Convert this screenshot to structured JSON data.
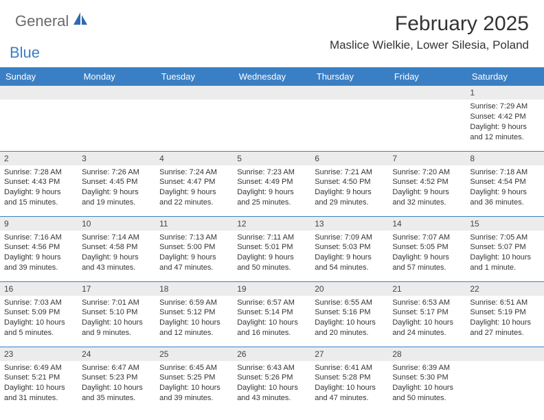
{
  "logo": {
    "textGray": "General",
    "textBlue": "Blue"
  },
  "title": "February 2025",
  "location": "Maslice Wielkie, Lower Silesia, Poland",
  "colors": {
    "headerBlue": "#3a7fc4",
    "dayBarGray": "#ececec",
    "textDark": "#333333",
    "logoGray": "#6a6a6a"
  },
  "dayHeaders": [
    "Sunday",
    "Monday",
    "Tuesday",
    "Wednesday",
    "Thursday",
    "Friday",
    "Saturday"
  ],
  "weeks": [
    [
      null,
      null,
      null,
      null,
      null,
      null,
      {
        "n": "1",
        "sunrise": "7:29 AM",
        "sunset": "4:42 PM",
        "daylight": "9 hours and 12 minutes."
      }
    ],
    [
      {
        "n": "2",
        "sunrise": "7:28 AM",
        "sunset": "4:43 PM",
        "daylight": "9 hours and 15 minutes."
      },
      {
        "n": "3",
        "sunrise": "7:26 AM",
        "sunset": "4:45 PM",
        "daylight": "9 hours and 19 minutes."
      },
      {
        "n": "4",
        "sunrise": "7:24 AM",
        "sunset": "4:47 PM",
        "daylight": "9 hours and 22 minutes."
      },
      {
        "n": "5",
        "sunrise": "7:23 AM",
        "sunset": "4:49 PM",
        "daylight": "9 hours and 25 minutes."
      },
      {
        "n": "6",
        "sunrise": "7:21 AM",
        "sunset": "4:50 PM",
        "daylight": "9 hours and 29 minutes."
      },
      {
        "n": "7",
        "sunrise": "7:20 AM",
        "sunset": "4:52 PM",
        "daylight": "9 hours and 32 minutes."
      },
      {
        "n": "8",
        "sunrise": "7:18 AM",
        "sunset": "4:54 PM",
        "daylight": "9 hours and 36 minutes."
      }
    ],
    [
      {
        "n": "9",
        "sunrise": "7:16 AM",
        "sunset": "4:56 PM",
        "daylight": "9 hours and 39 minutes."
      },
      {
        "n": "10",
        "sunrise": "7:14 AM",
        "sunset": "4:58 PM",
        "daylight": "9 hours and 43 minutes."
      },
      {
        "n": "11",
        "sunrise": "7:13 AM",
        "sunset": "5:00 PM",
        "daylight": "9 hours and 47 minutes."
      },
      {
        "n": "12",
        "sunrise": "7:11 AM",
        "sunset": "5:01 PM",
        "daylight": "9 hours and 50 minutes."
      },
      {
        "n": "13",
        "sunrise": "7:09 AM",
        "sunset": "5:03 PM",
        "daylight": "9 hours and 54 minutes."
      },
      {
        "n": "14",
        "sunrise": "7:07 AM",
        "sunset": "5:05 PM",
        "daylight": "9 hours and 57 minutes."
      },
      {
        "n": "15",
        "sunrise": "7:05 AM",
        "sunset": "5:07 PM",
        "daylight": "10 hours and 1 minute."
      }
    ],
    [
      {
        "n": "16",
        "sunrise": "7:03 AM",
        "sunset": "5:09 PM",
        "daylight": "10 hours and 5 minutes."
      },
      {
        "n": "17",
        "sunrise": "7:01 AM",
        "sunset": "5:10 PM",
        "daylight": "10 hours and 9 minutes."
      },
      {
        "n": "18",
        "sunrise": "6:59 AM",
        "sunset": "5:12 PM",
        "daylight": "10 hours and 12 minutes."
      },
      {
        "n": "19",
        "sunrise": "6:57 AM",
        "sunset": "5:14 PM",
        "daylight": "10 hours and 16 minutes."
      },
      {
        "n": "20",
        "sunrise": "6:55 AM",
        "sunset": "5:16 PM",
        "daylight": "10 hours and 20 minutes."
      },
      {
        "n": "21",
        "sunrise": "6:53 AM",
        "sunset": "5:17 PM",
        "daylight": "10 hours and 24 minutes."
      },
      {
        "n": "22",
        "sunrise": "6:51 AM",
        "sunset": "5:19 PM",
        "daylight": "10 hours and 27 minutes."
      }
    ],
    [
      {
        "n": "23",
        "sunrise": "6:49 AM",
        "sunset": "5:21 PM",
        "daylight": "10 hours and 31 minutes."
      },
      {
        "n": "24",
        "sunrise": "6:47 AM",
        "sunset": "5:23 PM",
        "daylight": "10 hours and 35 minutes."
      },
      {
        "n": "25",
        "sunrise": "6:45 AM",
        "sunset": "5:25 PM",
        "daylight": "10 hours and 39 minutes."
      },
      {
        "n": "26",
        "sunrise": "6:43 AM",
        "sunset": "5:26 PM",
        "daylight": "10 hours and 43 minutes."
      },
      {
        "n": "27",
        "sunrise": "6:41 AM",
        "sunset": "5:28 PM",
        "daylight": "10 hours and 47 minutes."
      },
      {
        "n": "28",
        "sunrise": "6:39 AM",
        "sunset": "5:30 PM",
        "daylight": "10 hours and 50 minutes."
      },
      null
    ]
  ],
  "labels": {
    "sunrise": "Sunrise:",
    "sunset": "Sunset:",
    "daylight": "Daylight:"
  }
}
